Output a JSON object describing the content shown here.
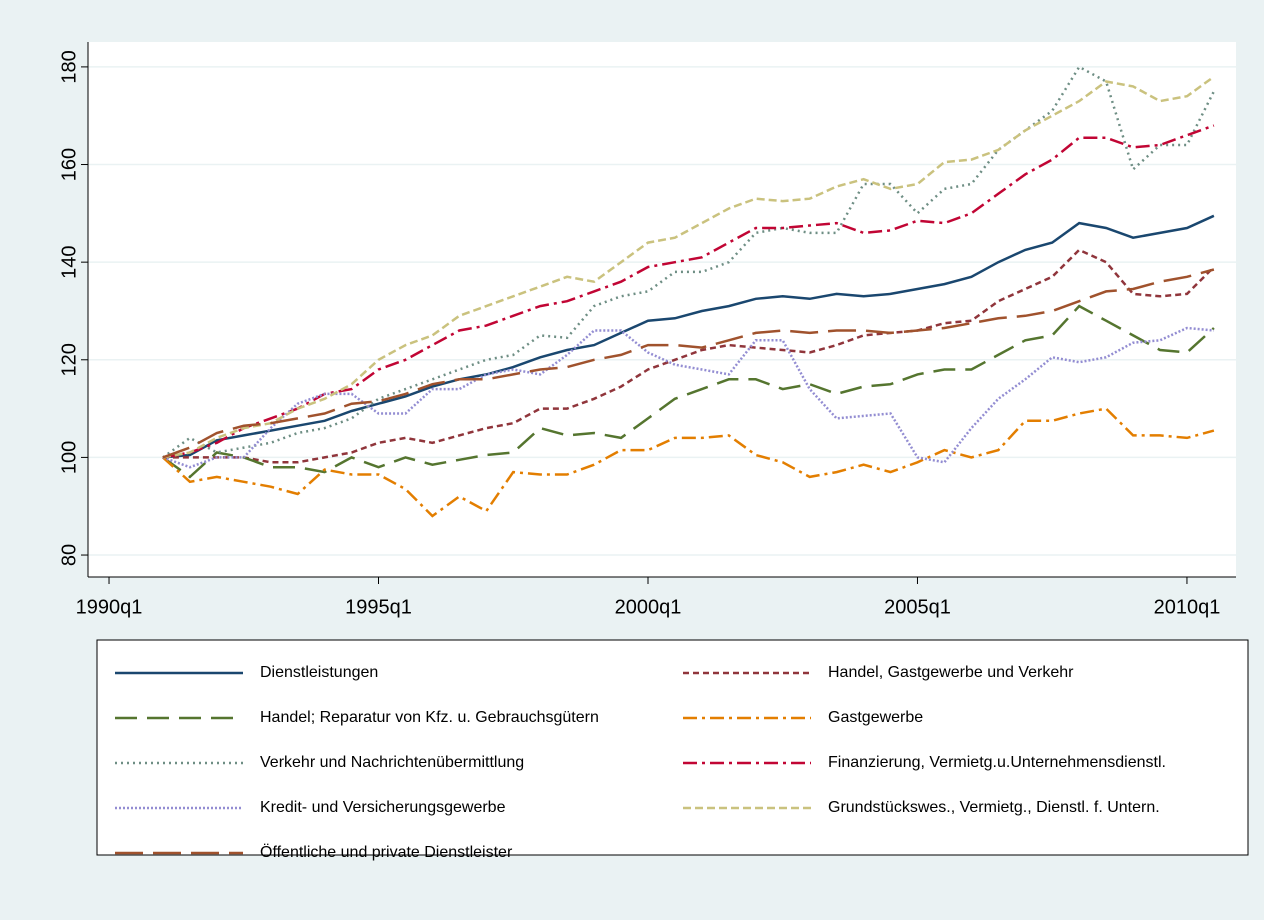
{
  "chart_data": {
    "type": "line",
    "x": [
      1991,
      1991.5,
      1992,
      1992.5,
      1993,
      1993.5,
      1994,
      1994.5,
      1995,
      1995.5,
      1996,
      1996.5,
      1997,
      1997.5,
      1998,
      1998.5,
      1999,
      1999.5,
      2000,
      2000.5,
      2001,
      2001.5,
      2002,
      2002.5,
      2003,
      2003.5,
      2004,
      2004.5,
      2005,
      2005.5,
      2006,
      2006.5,
      2007,
      2007.5,
      2008,
      2008.5,
      2009,
      2009.5,
      2010,
      2010.5
    ],
    "xlim": [
      1989.61,
      2010.91
    ],
    "xticks": [
      {
        "value": 1990,
        "label": "1990q1"
      },
      {
        "value": 1995,
        "label": "1995q1"
      },
      {
        "value": 2000,
        "label": "2000q1"
      },
      {
        "value": 2005,
        "label": "2005q1"
      },
      {
        "value": 2010,
        "label": "2010q1"
      }
    ],
    "ylim": [
      75.5,
      185.1
    ],
    "yticks": [
      80,
      100,
      120,
      140,
      160,
      180
    ],
    "grid": true,
    "series": [
      {
        "name": "Dienstleistungen",
        "color": "#1a476f",
        "dash": "none",
        "values": [
          100,
          100.5,
          103.5,
          104.5,
          105.5,
          106.5,
          107.5,
          109.5,
          111,
          112.5,
          114.5,
          116,
          117,
          118.5,
          120.5,
          122,
          123,
          125.5,
          128,
          128.5,
          130,
          131,
          132.5,
          133,
          132.5,
          133.5,
          133,
          133.5,
          134.5,
          135.5,
          137,
          140,
          142.5,
          144,
          148,
          147,
          145,
          146,
          147,
          149.5
        ]
      },
      {
        "name": "Handel, Gastgewerbe und Verkehr",
        "color": "#90353b",
        "dash": "6 4",
        "values": [
          100,
          100,
          100,
          100,
          99,
          99,
          100,
          101,
          103,
          104,
          103,
          104.5,
          106,
          107,
          110,
          110,
          112,
          114.5,
          118,
          120,
          122,
          123,
          122.5,
          122,
          121.5,
          123,
          125,
          125.5,
          126,
          127.5,
          128,
          132,
          134.5,
          137,
          142.5,
          140,
          133.5,
          133,
          133.5,
          139
        ]
      },
      {
        "name": "Handel; Reparatur von Kfz. u. Gebrauchsgütern",
        "color": "#55752f",
        "dash": "22 10",
        "values": [
          100,
          96,
          101,
          100,
          98,
          98,
          97,
          100,
          98,
          100,
          98.5,
          99.5,
          100.5,
          101,
          106,
          104.5,
          105,
          104,
          108,
          112,
          114,
          116,
          116,
          114,
          115,
          113,
          114.5,
          115,
          117,
          118,
          118,
          121,
          124,
          125,
          131,
          128,
          125,
          122,
          121.5,
          126.5
        ]
      },
      {
        "name": "Gastgewerbe",
        "color": "#e37e00",
        "dash": "14 5 3 5",
        "values": [
          100,
          95,
          96,
          95,
          94,
          92.5,
          97.5,
          96.5,
          96.5,
          93.5,
          88,
          92,
          89,
          97,
          96.5,
          96.5,
          98.5,
          101.5,
          101.5,
          104,
          104,
          104.5,
          100.5,
          99,
          96,
          97,
          98.5,
          97,
          99,
          101.5,
          100,
          101.5,
          107.5,
          107.5,
          109,
          110,
          104.5,
          104.5,
          104,
          105.5
        ]
      },
      {
        "name": "Verkehr und Nachrichtenübermittlung",
        "color": "#6e8e84",
        "dash": "2 4",
        "values": [
          100,
          104,
          101,
          102,
          103,
          105,
          106,
          108,
          112,
          114,
          116,
          118,
          120,
          121,
          125,
          124.5,
          131,
          133,
          134,
          138,
          138,
          140,
          146,
          147,
          146,
          146,
          156,
          156,
          150,
          155,
          156,
          163,
          167,
          171,
          180,
          177,
          159,
          164,
          164,
          175
        ]
      },
      {
        "name": "Finanzierung, Vermietg.u.Unternehmensdienstl.",
        "color": "#c10534",
        "dash": "14 5 3 5",
        "values": [
          100,
          101,
          103,
          106,
          108,
          110,
          113,
          114,
          118,
          120,
          123,
          126,
          127,
          129,
          131,
          132,
          134,
          136,
          139,
          140,
          141,
          144,
          147,
          147,
          147.5,
          148,
          146,
          146.5,
          148.5,
          148,
          150,
          154,
          158,
          161,
          165.5,
          165.5,
          163.5,
          164,
          166,
          168
        ]
      },
      {
        "name": "Kredit- und Versicherungsgewerbe",
        "color": "#938dd2",
        "dash": "2 2",
        "values": [
          100,
          98,
          100,
          100,
          106,
          111,
          113,
          113,
          109,
          109,
          114,
          114,
          117,
          118,
          117,
          121,
          126,
          126,
          121.5,
          119,
          118,
          117,
          124,
          124,
          114,
          108,
          108.5,
          109,
          100,
          99,
          106,
          112,
          116,
          120.5,
          119.5,
          120.5,
          123.5,
          124,
          126.5,
          126
        ]
      },
      {
        "name": "Grundstückswes., Vermietg., Dienstl. f. Untern.",
        "color": "#cac27e",
        "dash": "8 4",
        "values": [
          100,
          101,
          104,
          106,
          107,
          110,
          112,
          115,
          120,
          123,
          125,
          129,
          131,
          133,
          135,
          137,
          136,
          140,
          144,
          145,
          148,
          151,
          153,
          152.5,
          153,
          155.5,
          157,
          155,
          156,
          160.5,
          161,
          163,
          167,
          170,
          173,
          177,
          176,
          173,
          174,
          178
        ]
      },
      {
        "name": "Öffentliche und private Dienstleister",
        "color": "#a0522d",
        "dash": "28 10",
        "values": [
          100,
          102,
          105,
          106.5,
          107,
          108,
          109,
          111,
          111.5,
          113,
          115,
          116,
          116,
          117,
          118,
          118.5,
          120,
          121,
          123,
          123,
          122.5,
          124,
          125.5,
          126,
          125.5,
          126,
          126,
          125.5,
          126,
          126.5,
          127.5,
          128.5,
          129,
          130,
          132,
          134,
          134.5,
          136,
          137,
          138.5
        ]
      }
    ]
  }
}
